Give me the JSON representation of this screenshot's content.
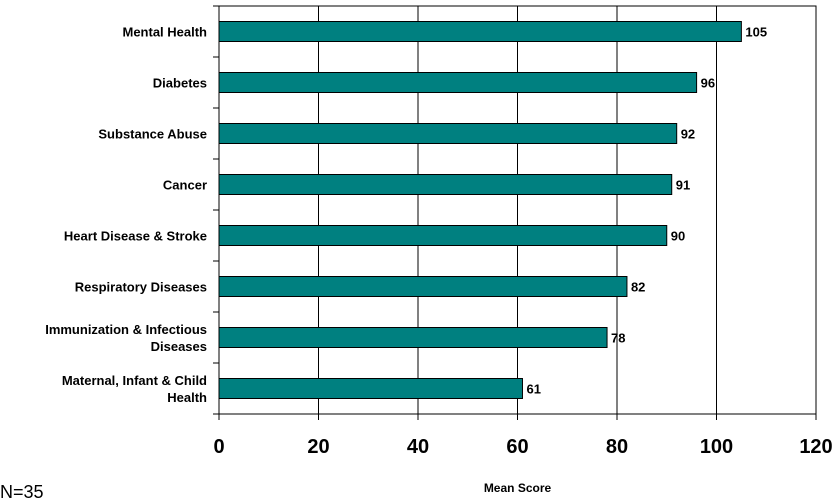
{
  "chart_data": {
    "type": "bar",
    "orientation": "horizontal",
    "categories": [
      [
        "Mental Health"
      ],
      [
        "Diabetes"
      ],
      [
        "Substance Abuse"
      ],
      [
        "Cancer"
      ],
      [
        "Heart Disease & Stroke"
      ],
      [
        "Respiratory Diseases"
      ],
      [
        "Immunization & Infectious",
        "Diseases"
      ],
      [
        "Maternal, Infant & Child",
        "Health"
      ]
    ],
    "values": [
      105,
      96,
      92,
      91,
      90,
      82,
      78,
      61
    ],
    "xlabel": "Mean Score",
    "xlim": [
      0,
      120
    ],
    "xticks": [
      0,
      20,
      40,
      60,
      80,
      100,
      120
    ],
    "grid": "vertical",
    "bar_color": "#008080"
  },
  "footnote": "N=35"
}
